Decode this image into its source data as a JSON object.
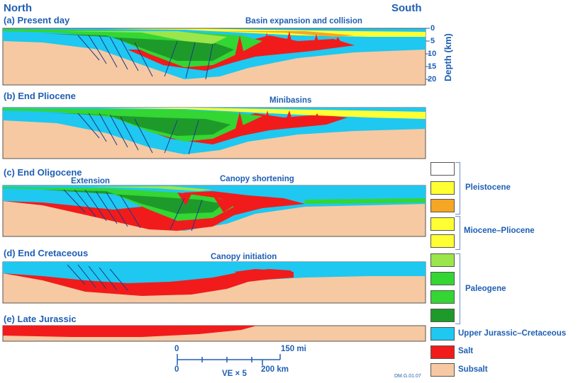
{
  "header": {
    "north": "North",
    "south": "South"
  },
  "depth_axis": {
    "title": "Depth (km)",
    "ticks": [
      "0",
      "5",
      "10",
      "15",
      "20"
    ]
  },
  "panels": [
    {
      "title": "(a) Present day",
      "annotations": [
        "Basin expansion and collision"
      ]
    },
    {
      "title": "(b) End Pliocene",
      "annotations": [
        "Minibasins"
      ]
    },
    {
      "title": "(c) End Oligocene",
      "annotations": [
        "Extension",
        "Canopy shortening"
      ]
    },
    {
      "title": "(d) End Cretaceous",
      "annotations": [
        "Canopy initiation"
      ]
    },
    {
      "title": "(e) Late Jurassic",
      "annotations": []
    }
  ],
  "legend": {
    "pleistocene": "Pleistocene",
    "miocene_pliocene": "Miocene–Pliocene",
    "paleogene": "Paleogene",
    "upper_jurassic_cretaceous": "Upper Jurassic–Cretaceous",
    "salt": "Salt",
    "subsalt": "Subsalt",
    "colors": {
      "white": "#ffffff",
      "yellow": "#ffff33",
      "orange": "#f5a623",
      "light_green": "#9be64a",
      "green": "#33d633",
      "dark_green": "#1e9a2a",
      "blue": "#1ec8f0",
      "red": "#f21b1b",
      "subsalt": "#f6c9a3"
    }
  },
  "scale_bar": {
    "top_start": "0",
    "top_end": "150 mi",
    "bottom_start": "0",
    "bottom_end": "200 km",
    "ve": "VE × 5"
  },
  "credit": "DM.G.01.07"
}
